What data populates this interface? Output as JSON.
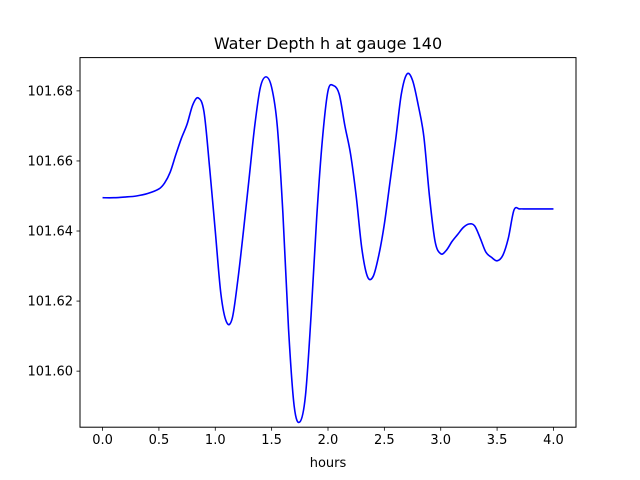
{
  "chart_data": {
    "type": "line",
    "title": "Water Depth h at gauge 140",
    "xlabel": "hours",
    "ylabel": "",
    "xlim": [
      -0.2,
      4.2
    ],
    "ylim": [
      101.584,
      101.6895
    ],
    "xticks": [
      0.0,
      0.5,
      1.0,
      1.5,
      2.0,
      2.5,
      3.0,
      3.5,
      4.0
    ],
    "xtick_labels": [
      "0.0",
      "0.5",
      "1.0",
      "1.5",
      "2.0",
      "2.5",
      "3.0",
      "3.5",
      "4.0"
    ],
    "yticks": [
      101.6,
      101.62,
      101.64,
      101.66,
      101.68
    ],
    "ytick_labels": [
      "101.60",
      "101.62",
      "101.64",
      "101.66",
      "101.68"
    ],
    "grid": false,
    "legend": "none",
    "series": [
      {
        "color": "#0000ff",
        "x": [
          0.0,
          0.1,
          0.2,
          0.3,
          0.4,
          0.5,
          0.55,
          0.6,
          0.65,
          0.7,
          0.75,
          0.8,
          0.85,
          0.9,
          0.95,
          1.0,
          1.05,
          1.1,
          1.15,
          1.2,
          1.25,
          1.3,
          1.35,
          1.4,
          1.45,
          1.5,
          1.55,
          1.6,
          1.65,
          1.7,
          1.75,
          1.8,
          1.85,
          1.9,
          1.95,
          2.0,
          2.05,
          2.1,
          2.15,
          2.2,
          2.25,
          2.3,
          2.35,
          2.4,
          2.45,
          2.5,
          2.55,
          2.6,
          2.65,
          2.7,
          2.75,
          2.8,
          2.85,
          2.9,
          2.95,
          3.0,
          3.05,
          3.1,
          3.15,
          3.2,
          3.25,
          3.3,
          3.35,
          3.4,
          3.45,
          3.5,
          3.55,
          3.6,
          3.65,
          3.7,
          3.75,
          3.8,
          3.85,
          3.9,
          3.95,
          4.0
        ],
        "y": [
          101.6495,
          101.6495,
          101.6497,
          101.65,
          101.6507,
          101.652,
          101.6537,
          101.6568,
          101.6618,
          101.6665,
          101.6705,
          101.676,
          101.678,
          101.674,
          101.658,
          101.64,
          101.622,
          101.614,
          101.615,
          101.626,
          101.64,
          101.655,
          101.67,
          101.681,
          101.684,
          101.681,
          101.67,
          101.645,
          101.612,
          101.59,
          101.5855,
          101.593,
          101.616,
          101.644,
          101.666,
          101.68,
          101.6815,
          101.679,
          101.67,
          101.662,
          101.65,
          101.635,
          101.627,
          101.627,
          101.633,
          101.642,
          101.654,
          101.666,
          101.679,
          101.6848,
          101.683,
          101.676,
          101.667,
          101.65,
          101.637,
          101.6335,
          101.6345,
          101.637,
          101.639,
          101.641,
          101.642,
          101.6415,
          101.638,
          101.634,
          101.6325,
          101.6315,
          101.633,
          101.638,
          101.646,
          101.6463,
          101.6463,
          101.6463,
          101.6463,
          101.6463,
          101.6463,
          101.6463
        ]
      }
    ]
  }
}
